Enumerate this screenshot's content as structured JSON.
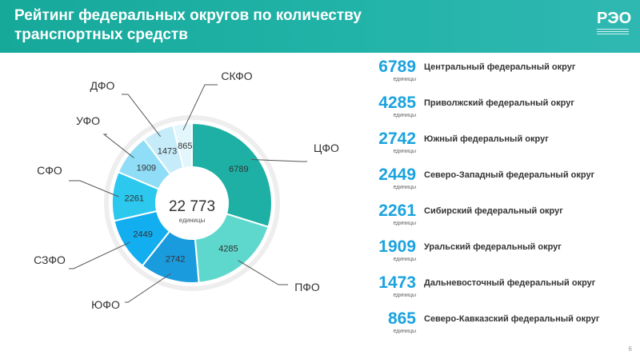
{
  "header": {
    "title": "Рейтинг федеральных округов по количеству транспортных средств"
  },
  "logo": {
    "text": "РЭО"
  },
  "page_number": "6",
  "chart_data": {
    "type": "pie",
    "center": {
      "total": "22 773",
      "unit": "единицы"
    },
    "slices": [
      {
        "label": "ЦФО",
        "value": 6789,
        "value_label": "6789",
        "color": "#1fb0a5"
      },
      {
        "label": "ПФО",
        "value": 4285,
        "value_label": "4285",
        "color": "#5ed8cd"
      },
      {
        "label": "ЮФО",
        "value": 2742,
        "value_label": "2742",
        "color": "#1a9bde"
      },
      {
        "label": "СЗФО",
        "value": 2449,
        "value_label": "2449",
        "color": "#12aef0"
      },
      {
        "label": "СФО",
        "value": 2261,
        "value_label": "2261",
        "color": "#2cc8ee"
      },
      {
        "label": "УФО",
        "value": 1909,
        "value_label": "1909",
        "color": "#8fddf6"
      },
      {
        "label": "ДФО",
        "value": 1473,
        "value_label": "1473",
        "color": "#c6ecfa"
      },
      {
        "label": "СКФО",
        "value": 865,
        "value_label": "865",
        "color": "#e3f6fc"
      }
    ]
  },
  "legend": {
    "unit": "единицы",
    "items": [
      {
        "value": "6789",
        "name": "Центральный федеральный округ"
      },
      {
        "value": "4285",
        "name": "Приволжский федеральный округ"
      },
      {
        "value": "2742",
        "name": "Южный федеральный округ"
      },
      {
        "value": "2449",
        "name": "Северо-Западный федеральный округ"
      },
      {
        "value": "2261",
        "name": "Сибирский федеральный округ"
      },
      {
        "value": "1909",
        "name": "Уральский федеральный округ"
      },
      {
        "value": "1473",
        "name": "Дальневосточный федеральный округ"
      },
      {
        "value": "865",
        "name": "Северо-Кавказский федеральный округ"
      }
    ]
  }
}
